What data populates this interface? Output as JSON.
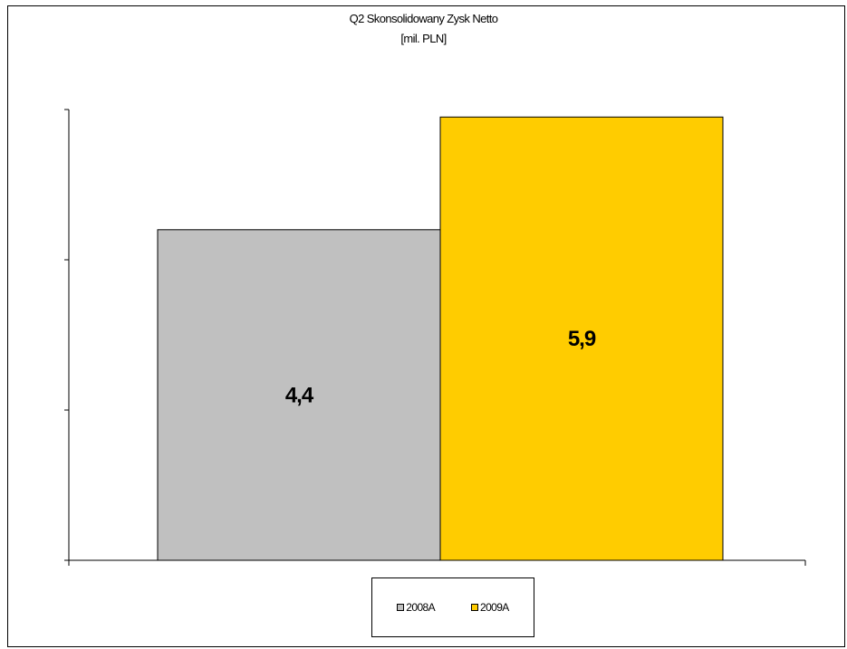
{
  "chart_data": {
    "type": "bar",
    "title": "Q2 Skonsolidowany Zysk Netto",
    "subtitle": "[mil. PLN]",
    "categories": [
      ""
    ],
    "series": [
      {
        "name": "2008A",
        "values": [
          4.4
        ],
        "label": "4,4",
        "color": "#c0c0c0"
      },
      {
        "name": "2009A",
        "values": [
          5.9
        ],
        "label": "5,9",
        "color": "#ffcc00"
      }
    ],
    "ylim": [
      0,
      6
    ],
    "yticks": [
      0,
      2,
      4,
      6
    ],
    "grid": false,
    "legend_position": "bottom"
  }
}
